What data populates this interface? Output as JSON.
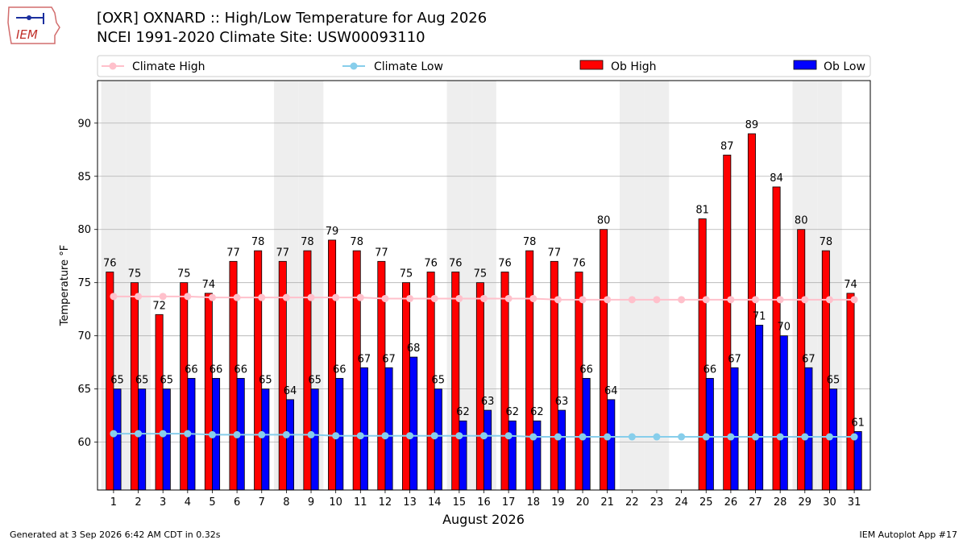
{
  "header": {
    "title_line1": "[OXR] OXNARD :: High/Low Temperature for Aug 2026",
    "title_line2": "NCEI 1991-2020 Climate Site: USW00093110",
    "logo_text": "IEM"
  },
  "footer": {
    "generated": "Generated at 3 Sep 2026 6:42 AM CDT in 0.32s",
    "app": "IEM Autoplot App #17"
  },
  "colors": {
    "ob_high": "#ff0000",
    "ob_low": "#0000ff",
    "climate_high": "#ffc0cb",
    "climate_low": "#87ceeb",
    "weekend_band": "#eeeeee",
    "grid": "#b0b0b0"
  },
  "chart_data": {
    "type": "bar",
    "xlabel": "August 2026",
    "ylabel": "Temperature °F",
    "ylim": [
      55.5,
      94
    ],
    "yticks": [
      60,
      65,
      70,
      75,
      80,
      85,
      90
    ],
    "grid": true,
    "legend_position": "top",
    "categories": [
      "1",
      "2",
      "3",
      "4",
      "5",
      "6",
      "7",
      "8",
      "9",
      "10",
      "11",
      "12",
      "13",
      "14",
      "15",
      "16",
      "17",
      "18",
      "19",
      "20",
      "21",
      "22",
      "23",
      "24",
      "25",
      "26",
      "27",
      "28",
      "29",
      "30",
      "31"
    ],
    "shaded_days": [
      1,
      2,
      8,
      9,
      15,
      16,
      22,
      23,
      29,
      30
    ],
    "series": [
      {
        "name": "Ob High",
        "kind": "bar",
        "values": [
          76,
          75,
          72,
          75,
          74,
          77,
          78,
          77,
          78,
          79,
          78,
          77,
          75,
          76,
          76,
          75,
          76,
          78,
          77,
          76,
          80,
          null,
          null,
          null,
          81,
          87,
          89,
          84,
          80,
          78,
          74
        ]
      },
      {
        "name": "Ob Low",
        "kind": "bar",
        "values": [
          65,
          65,
          65,
          66,
          66,
          66,
          65,
          64,
          65,
          66,
          67,
          67,
          68,
          65,
          62,
          63,
          62,
          62,
          63,
          66,
          64,
          null,
          null,
          null,
          66,
          67,
          71,
          70,
          67,
          65,
          61
        ]
      },
      {
        "name": "Climate High",
        "kind": "line",
        "values": [
          73.7,
          73.7,
          73.7,
          73.7,
          73.6,
          73.6,
          73.6,
          73.6,
          73.6,
          73.6,
          73.6,
          73.5,
          73.5,
          73.5,
          73.5,
          73.5,
          73.5,
          73.5,
          73.4,
          73.4,
          73.4,
          73.4,
          73.4,
          73.4,
          73.4,
          73.4,
          73.4,
          73.4,
          73.4,
          73.4,
          73.4
        ]
      },
      {
        "name": "Climate Low",
        "kind": "line",
        "values": [
          60.8,
          60.8,
          60.8,
          60.8,
          60.7,
          60.7,
          60.7,
          60.7,
          60.7,
          60.6,
          60.6,
          60.6,
          60.6,
          60.6,
          60.6,
          60.6,
          60.6,
          60.5,
          60.5,
          60.5,
          60.5,
          60.5,
          60.5,
          60.5,
          60.5,
          60.5,
          60.5,
          60.5,
          60.5,
          60.5,
          60.5
        ]
      }
    ]
  }
}
